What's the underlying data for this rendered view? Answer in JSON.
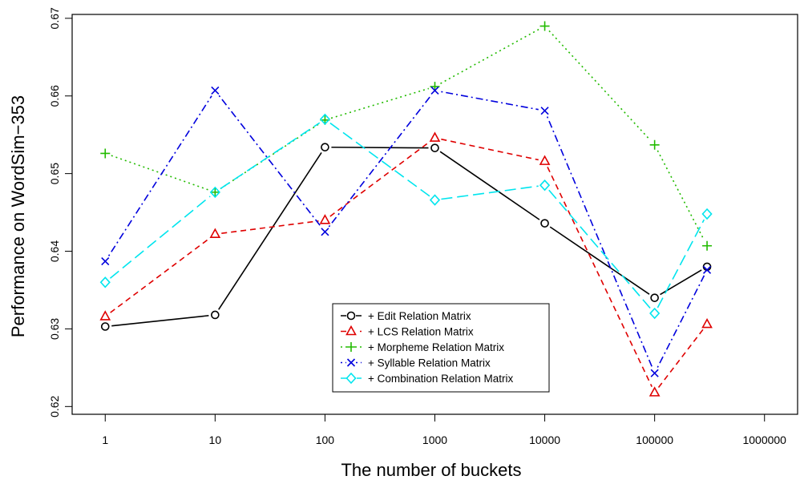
{
  "chart_data": {
    "type": "line",
    "title": "",
    "xlabel": "The number of buckets",
    "ylabel": "Performance on WordSim−353",
    "x_scale": "log",
    "xlim": [
      0.5,
      2000000
    ],
    "ylim": [
      0.619,
      0.6705
    ],
    "x_ticks": [
      1,
      10,
      100,
      1000,
      10000,
      100000,
      1000000
    ],
    "x_tick_labels": [
      "1",
      "10",
      "100",
      "1000",
      "10000",
      "100000",
      "1000000"
    ],
    "y_ticks": [
      0.62,
      0.63,
      0.64,
      0.65,
      0.66,
      0.67
    ],
    "y_tick_labels": [
      "0.62",
      "0.63",
      "0.64",
      "0.65",
      "0.66",
      "0.67"
    ],
    "grid": false,
    "legend_position": "bottom-center",
    "x": [
      1,
      10,
      100,
      1000,
      10000,
      100000,
      300000
    ],
    "series": [
      {
        "name": "+ Edit Relation Matrix",
        "color": "#000000",
        "marker": "circle",
        "dash": "solid",
        "values": [
          0.6303,
          0.6318,
          0.6534,
          0.6533,
          0.6436,
          0.634,
          0.638
        ]
      },
      {
        "name": "+ LCS Relation Matrix",
        "color": "#DF0000",
        "marker": "triangle",
        "dash": "dashed",
        "values": [
          0.6316,
          0.6422,
          0.644,
          0.6546,
          0.6516,
          0.6218,
          0.6306
        ]
      },
      {
        "name": "+ Morpheme Relation Matrix",
        "color": "#22BB00",
        "marker": "plus",
        "dash": "dotted",
        "values": [
          0.6526,
          0.6476,
          0.6569,
          0.6612,
          0.669,
          0.6537,
          0.6407
        ]
      },
      {
        "name": "+ Syllable Relation Matrix",
        "color": "#0000DD",
        "marker": "cross",
        "dash": "dotdash",
        "values": [
          0.6387,
          0.6607,
          0.6425,
          0.6607,
          0.6581,
          0.6243,
          0.6376
        ]
      },
      {
        "name": "+ Combination Relation Matrix",
        "color": "#00E5EE",
        "marker": "diamond",
        "dash": "longdash",
        "values": [
          0.636,
          0.6476,
          0.657,
          0.6466,
          0.6485,
          0.632,
          0.6448
        ]
      }
    ]
  }
}
